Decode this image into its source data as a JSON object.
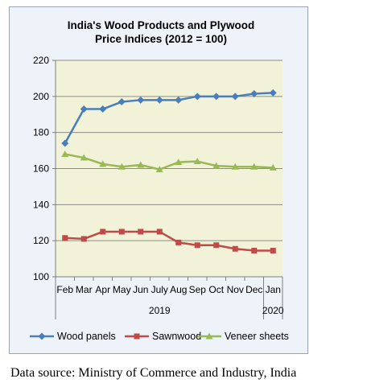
{
  "chart_data": {
    "type": "line",
    "title": "India's Wood Products and Plywood",
    "subtitle": "Price Indices (2012 = 100)",
    "categories": [
      "Feb",
      "Mar",
      "Apr",
      "May",
      "Jun",
      "July",
      "Aug",
      "Sep",
      "Oct",
      "Nov",
      "Dec",
      "Jan"
    ],
    "year_labels": [
      "2019",
      "2020"
    ],
    "ylim": [
      100,
      220
    ],
    "yticks": [
      100,
      120,
      140,
      160,
      180,
      200,
      220
    ],
    "series": [
      {
        "name": "Wood panels",
        "color": "#4a7ebb",
        "marker": "diamond",
        "values": [
          174,
          193,
          193,
          197,
          198,
          198,
          198,
          200,
          200,
          200,
          201.5,
          202
        ]
      },
      {
        "name": "Sawnwood",
        "color": "#be4b48",
        "marker": "square",
        "values": [
          121.5,
          121,
          125,
          125,
          125,
          125,
          119,
          117.5,
          117.5,
          115.5,
          114.5,
          114.5
        ]
      },
      {
        "name": "Veneer sheets",
        "color": "#98b954",
        "marker": "triangle",
        "values": [
          168,
          166,
          162.5,
          161,
          162,
          159.5,
          163.5,
          164,
          161.5,
          161,
          161,
          160.5
        ]
      }
    ],
    "plot_background": "#f2f2d9",
    "grid": "horizontal",
    "legend_position": "bottom"
  },
  "source_text": "Data source: Ministry of Commerce and Industry, India"
}
